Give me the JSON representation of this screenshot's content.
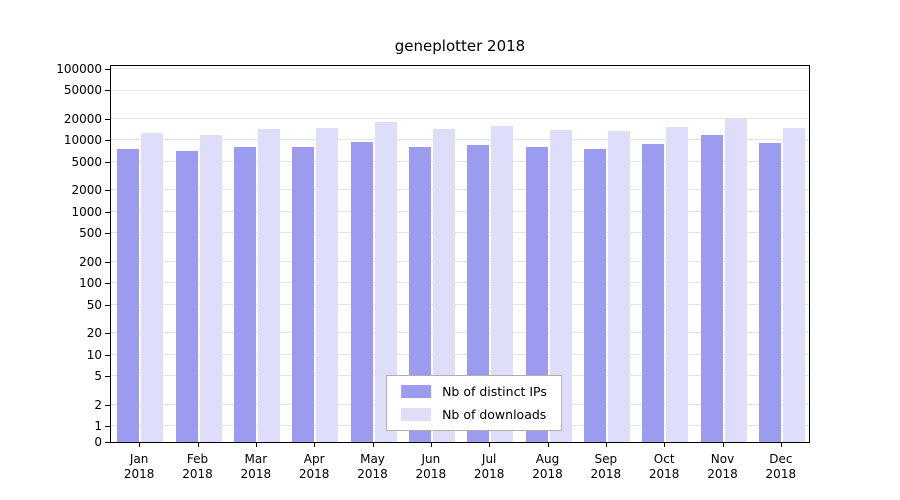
{
  "chart_data": {
    "type": "bar",
    "title": "geneplotter 2018",
    "categories": [
      "Jan 2018",
      "Feb 2018",
      "Mar 2018",
      "Apr 2018",
      "May 2018",
      "Jun 2018",
      "Jul 2018",
      "Aug 2018",
      "Sep 2018",
      "Oct 2018",
      "Nov 2018",
      "Dec 2018"
    ],
    "series": [
      {
        "name": "Nb of distinct IPs",
        "color": "#9b9bef",
        "values": [
          7500,
          7200,
          8200,
          8200,
          9500,
          8100,
          8700,
          8000,
          7700,
          9000,
          12000,
          9200
        ]
      },
      {
        "name": "Nb of downloads",
        "color": "#dedefa",
        "values": [
          12500,
          12000,
          14500,
          15000,
          18000,
          14500,
          16000,
          14000,
          13500,
          15500,
          20000,
          15000
        ]
      }
    ],
    "y_axis": {
      "scale": "log",
      "ticks": [
        0,
        1,
        2,
        5,
        10,
        20,
        50,
        100,
        200,
        500,
        1000,
        2000,
        5000,
        10000,
        20000,
        50000,
        100000
      ]
    },
    "grid": true,
    "legend": {
      "position": "lower center inside"
    }
  }
}
